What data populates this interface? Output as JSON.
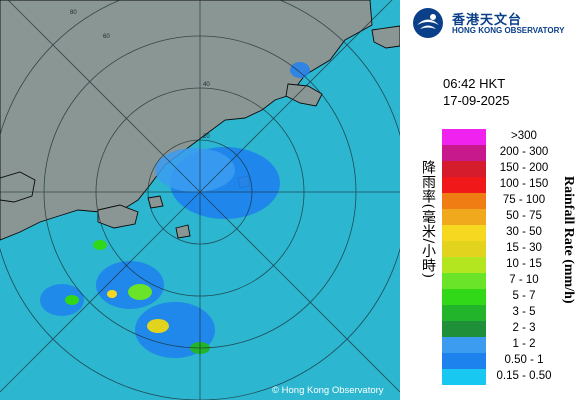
{
  "observatory": {
    "name_zh": "香港天文台",
    "name_en": "HONG KONG OBSERVATORY"
  },
  "timestamp": {
    "time": "06:42 HKT",
    "date": "17-09-2025"
  },
  "legend": {
    "title_zh": "降雨率(毫米/小時)",
    "title_en": "Rainfall Rate (mm/h)",
    "levels": [
      {
        "label": ">300",
        "color": "#f022f0"
      },
      {
        "label": "200 - 300",
        "color": "#c8198c"
      },
      {
        "label": "150 - 200",
        "color": "#d41c2c"
      },
      {
        "label": "100 - 150",
        "color": "#f01818"
      },
      {
        "label": "75 - 100",
        "color": "#f07d14"
      },
      {
        "label": "50 - 75",
        "color": "#f0a81c"
      },
      {
        "label": "30 - 50",
        "color": "#f7d820"
      },
      {
        "label": "15 - 30",
        "color": "#e2d41e"
      },
      {
        "label": "10 - 15",
        "color": "#b4e620"
      },
      {
        "label": "7 - 10",
        "color": "#6ae428"
      },
      {
        "label": "5 - 7",
        "color": "#30d818"
      },
      {
        "label": "3 - 5",
        "color": "#22b42a"
      },
      {
        "label": "2 - 3",
        "color": "#1f8f3a"
      },
      {
        "label": "1 - 2",
        "color": "#3c9cf0"
      },
      {
        "label": "0.50 - 1",
        "color": "#1e82ee"
      },
      {
        "label": "0.15 - 0.50",
        "color": "#18c8f0"
      }
    ]
  },
  "map": {
    "ring_labels": [
      "20",
      "40",
      "60",
      "80"
    ],
    "copyright": "© Hong Kong Observatory",
    "colors": {
      "sea": "#2cb6cf",
      "land": "#8a9694",
      "coast": "#0a0a0a",
      "rings": "#1a2a30"
    }
  }
}
